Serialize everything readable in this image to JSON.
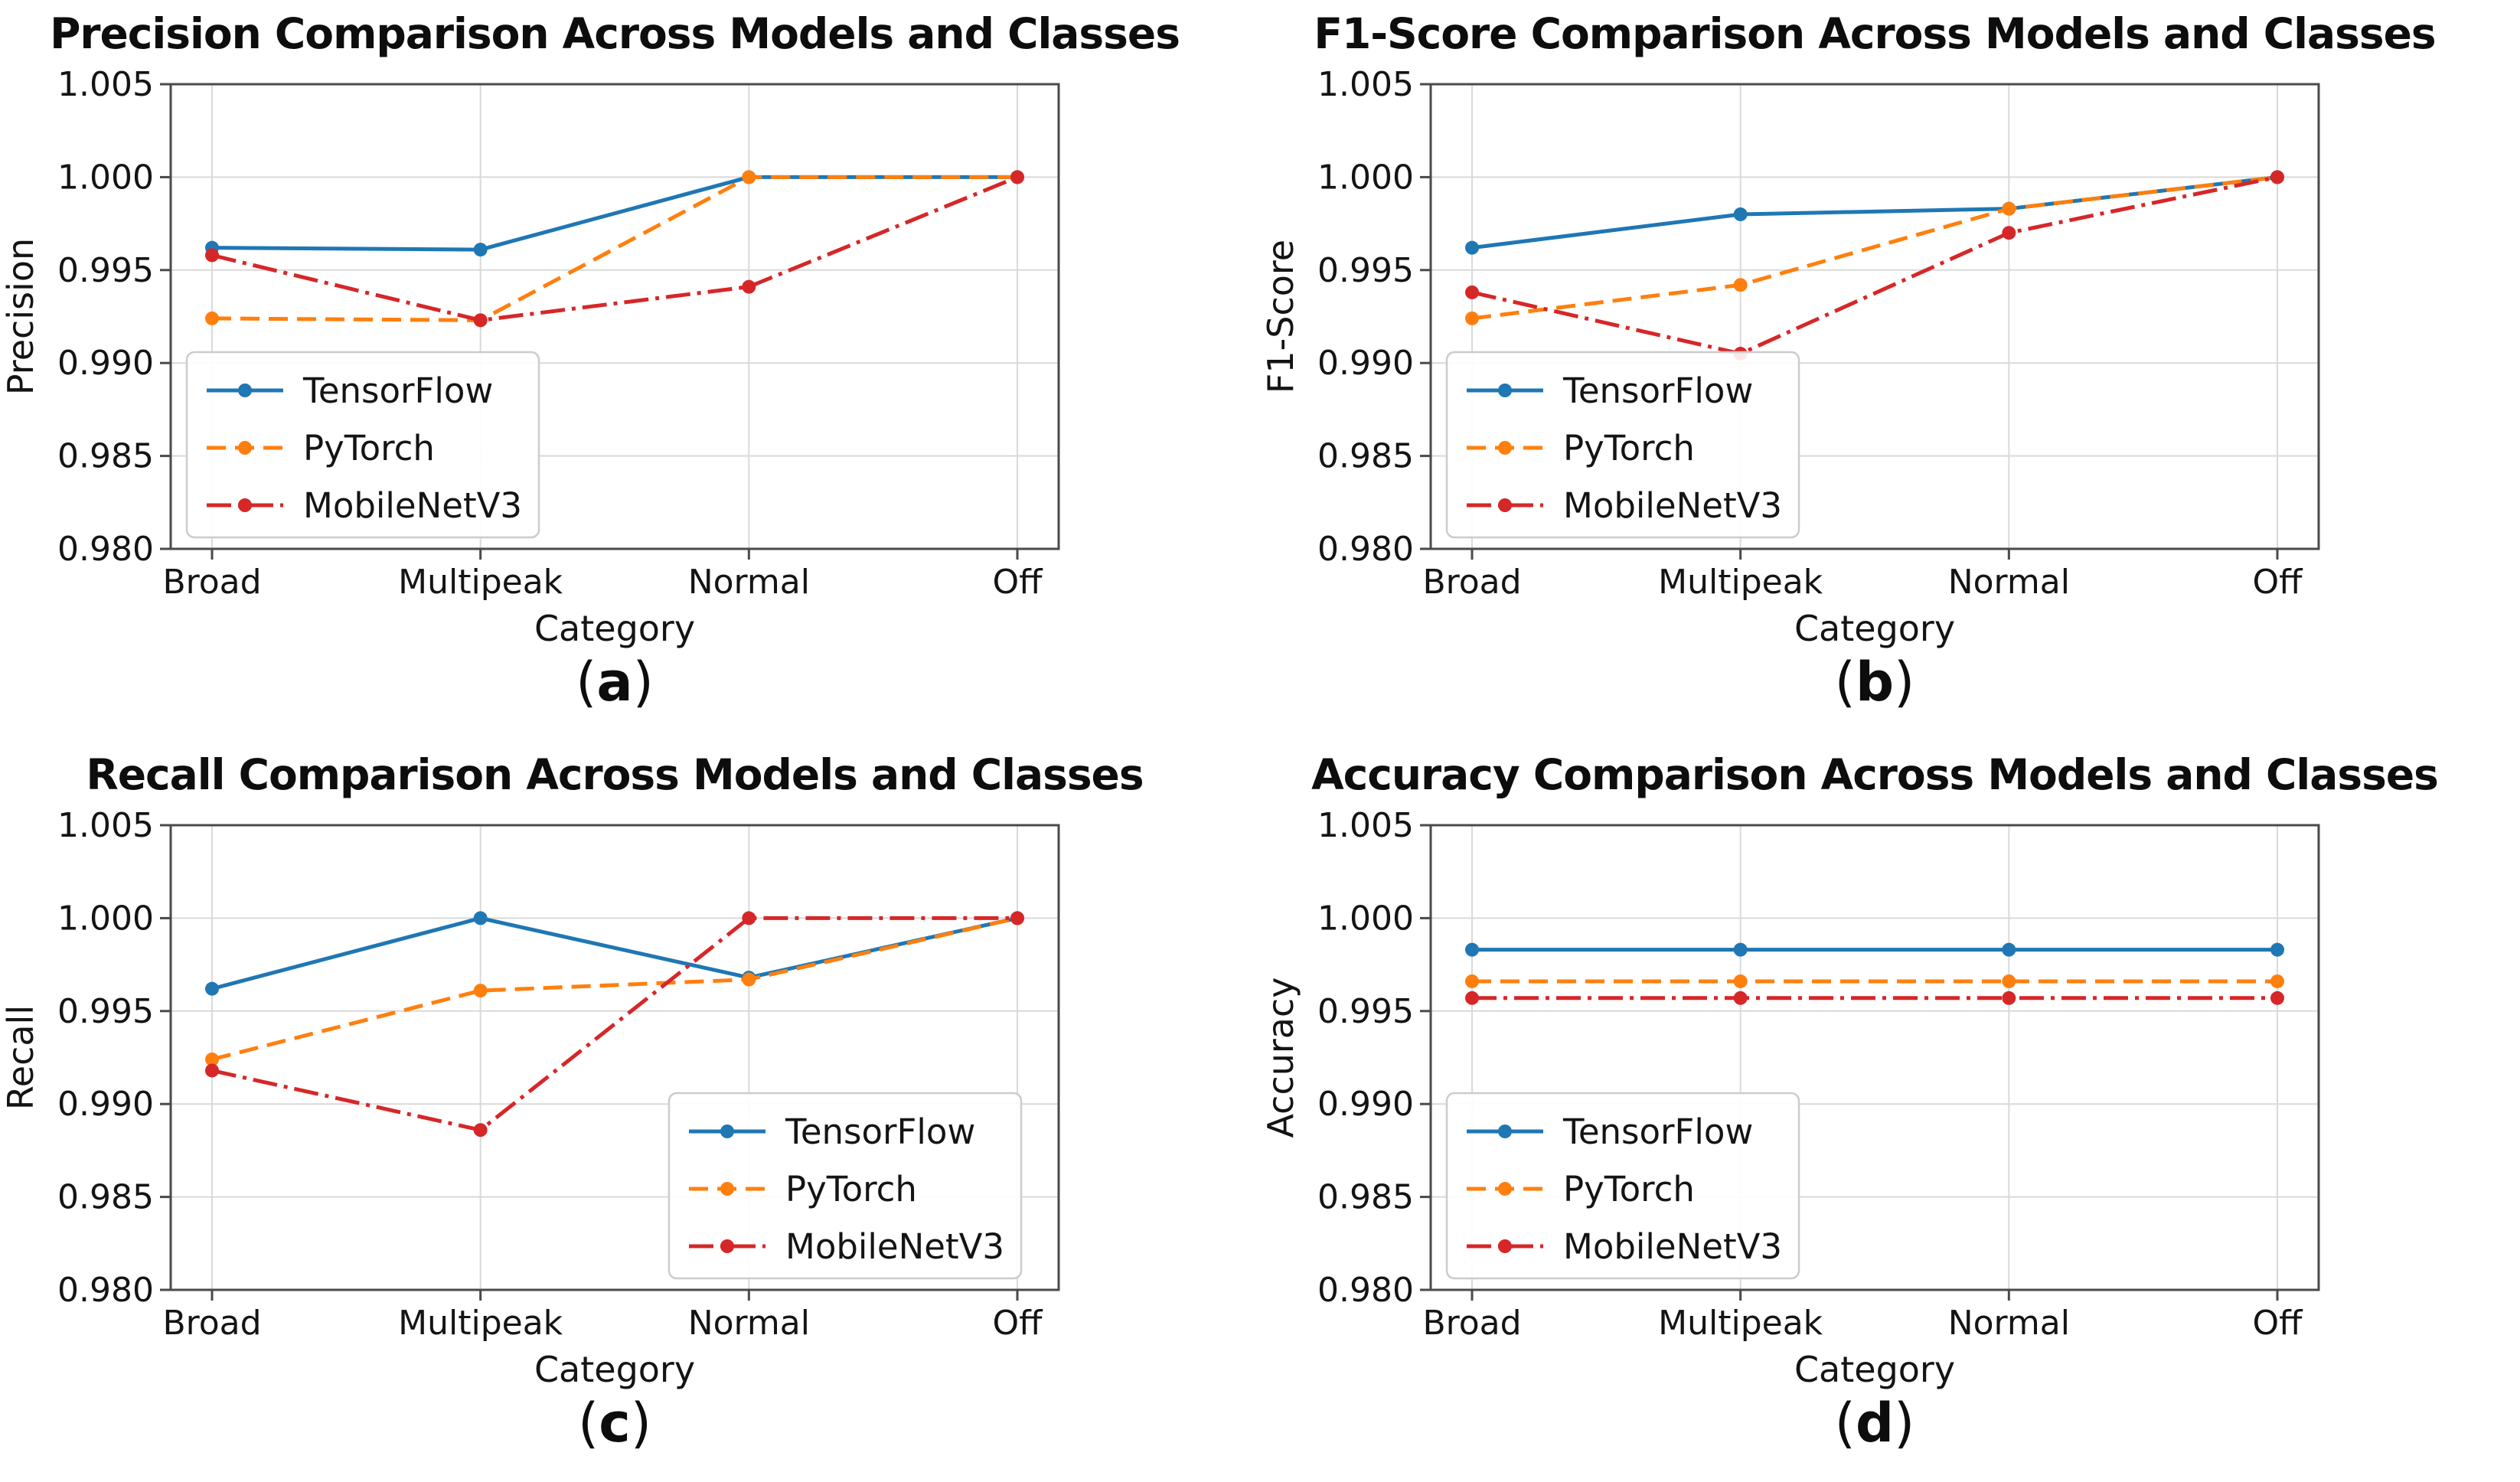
{
  "figure": {
    "background": "#ffffff",
    "grid_color": "#d9d9d9",
    "spine_color": "#4a4a4a",
    "text_color": "#141414",
    "legend_border_color": "#cccccc",
    "legend_fill": "#ffffff"
  },
  "chart_data": [
    {
      "type": "line",
      "title": "Precision Comparison Across Models and Classes",
      "xlabel": "Category",
      "ylabel": "Precision",
      "caption": {
        "open": "(",
        "label": "a",
        "close": ")"
      },
      "categories": [
        "Broad",
        "Multipeak",
        "Normal",
        "Off"
      ],
      "ylim": [
        0.98,
        1.005
      ],
      "yticks": [
        "0.980",
        "0.985",
        "0.990",
        "0.995",
        "1.000",
        "1.005"
      ],
      "grid": true,
      "legend_position": "lower-left",
      "series": [
        {
          "name": "TensorFlow",
          "color": "#1f77b4",
          "style": "solid",
          "values": [
            0.9962,
            0.9961,
            1.0,
            1.0
          ]
        },
        {
          "name": "PyTorch",
          "color": "#ff7f0e",
          "style": "dashed",
          "values": [
            0.9924,
            0.9923,
            1.0,
            1.0
          ]
        },
        {
          "name": "MobileNetV3",
          "color": "#d62728",
          "style": "dashdot",
          "values": [
            0.9958,
            0.9923,
            0.9941,
            1.0
          ]
        }
      ]
    },
    {
      "type": "line",
      "title": "F1-Score Comparison Across Models and Classes",
      "xlabel": "Category",
      "ylabel": "F1-Score",
      "caption": {
        "open": "(",
        "label": "b",
        "close": ")"
      },
      "categories": [
        "Broad",
        "Multipeak",
        "Normal",
        "Off"
      ],
      "ylim": [
        0.98,
        1.005
      ],
      "yticks": [
        "0.980",
        "0.985",
        "0.990",
        "0.995",
        "1.000",
        "1.005"
      ],
      "grid": true,
      "legend_position": "lower-left",
      "series": [
        {
          "name": "TensorFlow",
          "color": "#1f77b4",
          "style": "solid",
          "values": [
            0.9962,
            0.998,
            0.9983,
            1.0
          ]
        },
        {
          "name": "PyTorch",
          "color": "#ff7f0e",
          "style": "dashed",
          "values": [
            0.9924,
            0.9942,
            0.9983,
            1.0
          ]
        },
        {
          "name": "MobileNetV3",
          "color": "#d62728",
          "style": "dashdot",
          "values": [
            0.9938,
            0.9905,
            0.997,
            1.0
          ]
        }
      ]
    },
    {
      "type": "line",
      "title": "Recall Comparison Across Models and Classes",
      "xlabel": "Category",
      "ylabel": "Recall",
      "caption": {
        "open": "(",
        "label": "c",
        "close": ")"
      },
      "categories": [
        "Broad",
        "Multipeak",
        "Normal",
        "Off"
      ],
      "ylim": [
        0.98,
        1.005
      ],
      "yticks": [
        "0.980",
        "0.985",
        "0.990",
        "0.995",
        "1.000",
        "1.005"
      ],
      "grid": true,
      "legend_position": "lower-right",
      "series": [
        {
          "name": "TensorFlow",
          "color": "#1f77b4",
          "style": "solid",
          "values": [
            0.9962,
            1.0,
            0.9968,
            1.0
          ]
        },
        {
          "name": "PyTorch",
          "color": "#ff7f0e",
          "style": "dashed",
          "values": [
            0.9924,
            0.9961,
            0.9967,
            1.0
          ]
        },
        {
          "name": "MobileNetV3",
          "color": "#d62728",
          "style": "dashdot",
          "values": [
            0.9918,
            0.9886,
            1.0,
            1.0
          ]
        }
      ]
    },
    {
      "type": "line",
      "title": "Accuracy Comparison Across Models and Classes",
      "xlabel": "Category",
      "ylabel": "Accuracy",
      "caption": {
        "open": "(",
        "label": "d",
        "close": ")"
      },
      "categories": [
        "Broad",
        "Multipeak",
        "Normal",
        "Off"
      ],
      "ylim": [
        0.98,
        1.005
      ],
      "yticks": [
        "0.980",
        "0.985",
        "0.990",
        "0.995",
        "1.000",
        "1.005"
      ],
      "grid": true,
      "legend_position": "lower-left",
      "series": [
        {
          "name": "TensorFlow",
          "color": "#1f77b4",
          "style": "solid",
          "values": [
            0.9983,
            0.9983,
            0.9983,
            0.9983
          ]
        },
        {
          "name": "PyTorch",
          "color": "#ff7f0e",
          "style": "dashed",
          "values": [
            0.9966,
            0.9966,
            0.9966,
            0.9966
          ]
        },
        {
          "name": "MobileNetV3",
          "color": "#d62728",
          "style": "dashdot",
          "values": [
            0.9957,
            0.9957,
            0.9957,
            0.9957
          ]
        }
      ]
    }
  ]
}
